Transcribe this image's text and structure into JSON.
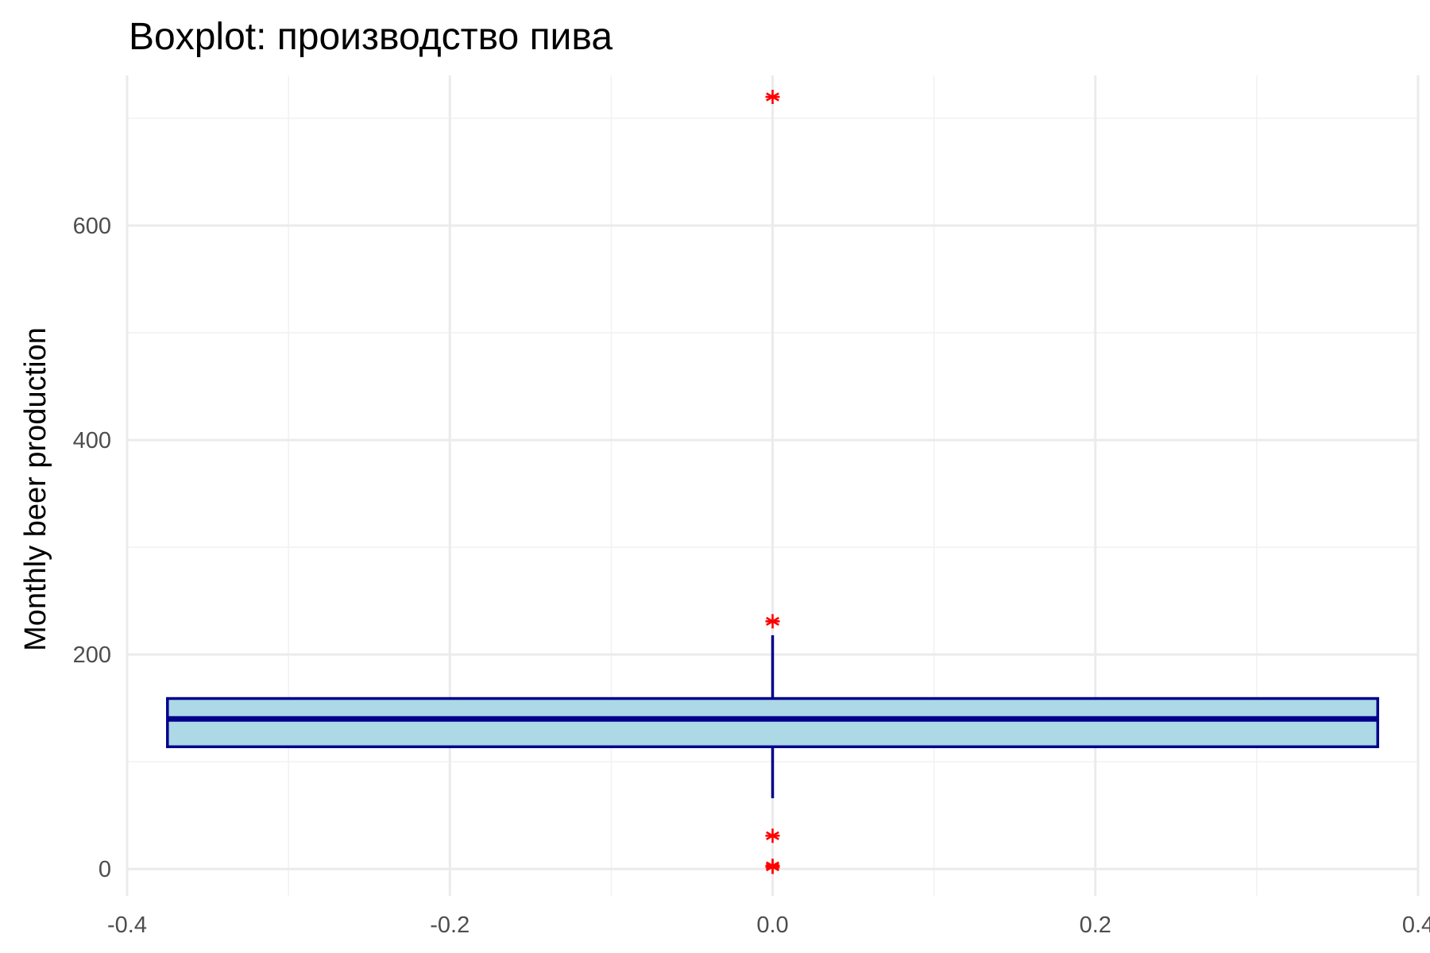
{
  "chart_data": {
    "type": "boxplot",
    "title": "Boxplot: производство пива",
    "xlabel": "",
    "ylabel": "Monthly beer production",
    "xlim": [
      -0.4,
      0.4
    ],
    "ylim": [
      -25,
      740
    ],
    "x_ticks": [
      -0.4,
      -0.2,
      0.0,
      0.2,
      0.4
    ],
    "x_tick_labels": [
      "-0.4",
      "-0.2",
      "0.0",
      "0.2",
      "0.4"
    ],
    "y_ticks": [
      0,
      200,
      400,
      600
    ],
    "y_tick_labels": [
      "0",
      "200",
      "400",
      "600"
    ],
    "grid": true,
    "box": {
      "x_center": 0,
      "x_left": -0.375,
      "x_right": 0.375,
      "q1": 114,
      "median": 140,
      "q3": 159,
      "whisker_low": 66,
      "whisker_high": 218
    },
    "outliers": [
      {
        "x": 0,
        "y": 720
      },
      {
        "x": 0,
        "y": 231
      },
      {
        "x": 0,
        "y": 31
      },
      {
        "x": 0,
        "y": 3
      },
      {
        "x": 0,
        "y": 2
      }
    ],
    "colors": {
      "box_fill": "#add8e6",
      "box_border": "#00008b",
      "outlier": "#ff0000",
      "grid": "#ebebeb"
    }
  }
}
